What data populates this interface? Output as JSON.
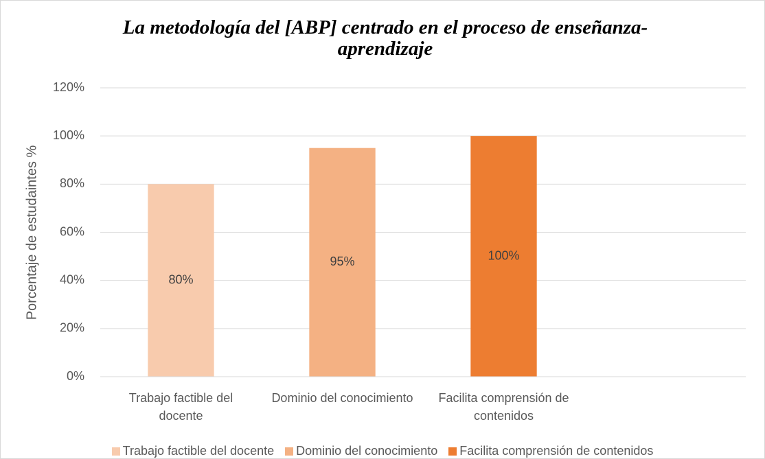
{
  "chart_data": {
    "type": "bar",
    "title": "La metodología del [ABP] centrado en el proceso de enseñanza-aprendizaje",
    "ylabel": "Porcentaje de estudaintes %",
    "categories": [
      "Trabajo factible del docente",
      "Dominio del conocimiento",
      "Facilita comprensión de contenidos",
      null
    ],
    "series": [
      {
        "name": "Trabajo factible del docente",
        "color": "#f8cbad",
        "values": [
          80,
          null,
          null,
          null
        ],
        "value_labels": [
          "80%",
          null,
          null,
          null
        ]
      },
      {
        "name": "Dominio del conocimiento",
        "color": "#f4b183",
        "values": [
          null,
          95,
          null,
          null
        ],
        "value_labels": [
          null,
          "95%",
          null,
          null
        ]
      },
      {
        "name": "Facilita comprensión de contenidos",
        "color": "#ed7d31",
        "values": [
          null,
          null,
          100,
          null
        ],
        "value_labels": [
          null,
          null,
          "100%",
          null
        ]
      }
    ],
    "ylim": [
      0,
      120
    ],
    "yticks": [
      {
        "value": 0,
        "label": "0%"
      },
      {
        "value": 20,
        "label": "20%"
      },
      {
        "value": 40,
        "label": "40%"
      },
      {
        "value": 60,
        "label": "60%"
      },
      {
        "value": 80,
        "label": "80%"
      },
      {
        "value": 100,
        "label": "100%"
      },
      {
        "value": 120,
        "label": "120%"
      }
    ],
    "grid": true,
    "legend": "bottom"
  }
}
